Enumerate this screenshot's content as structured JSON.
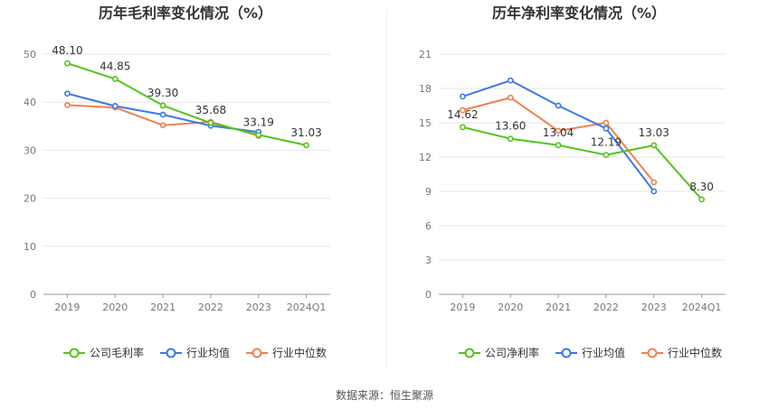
{
  "source_label": "数据来源：恒生聚源",
  "chart_data": [
    {
      "type": "line",
      "title": "历年毛利率变化情况（%）",
      "categories": [
        "2019",
        "2020",
        "2021",
        "2022",
        "2023",
        "2024Q1"
      ],
      "ylim": [
        0,
        50
      ],
      "yticks": [
        0,
        10,
        20,
        30,
        40,
        50
      ],
      "grid": true,
      "legend_position": "bottom",
      "series": [
        {
          "name": "公司毛利率",
          "color": "#52c41a",
          "values": [
            48.1,
            44.85,
            39.3,
            35.68,
            33.19,
            31.03
          ],
          "labels": [
            "48.10",
            "44.85",
            "39.30",
            "35.68",
            "33.19",
            "31.03"
          ]
        },
        {
          "name": "行业均值",
          "color": "#3b78e7",
          "values": [
            41.8,
            39.2,
            37.4,
            35.1,
            33.8,
            null
          ]
        },
        {
          "name": "行业中位数",
          "color": "#f08050",
          "values": [
            39.4,
            38.9,
            35.2,
            35.9,
            33.0,
            null
          ]
        }
      ]
    },
    {
      "type": "line",
      "title": "历年净利率变化情况（%）",
      "categories": [
        "2019",
        "2020",
        "2021",
        "2022",
        "2023",
        "2024Q1"
      ],
      "ylim": [
        0,
        21
      ],
      "yticks": [
        0,
        3,
        6,
        9,
        12,
        15,
        18,
        21
      ],
      "grid": true,
      "legend_position": "bottom",
      "series": [
        {
          "name": "公司净利率",
          "color": "#52c41a",
          "values": [
            14.62,
            13.6,
            13.04,
            12.19,
            13.03,
            8.3
          ],
          "labels": [
            "14.62",
            "13.60",
            "13.04",
            "12.19",
            "13.03",
            "8.30"
          ]
        },
        {
          "name": "行业均值",
          "color": "#3b78e7",
          "values": [
            17.3,
            18.7,
            16.5,
            14.5,
            9.0,
            null
          ]
        },
        {
          "name": "行业中位数",
          "color": "#f08050",
          "values": [
            16.1,
            17.2,
            14.3,
            15.0,
            9.8,
            null
          ]
        }
      ]
    }
  ]
}
